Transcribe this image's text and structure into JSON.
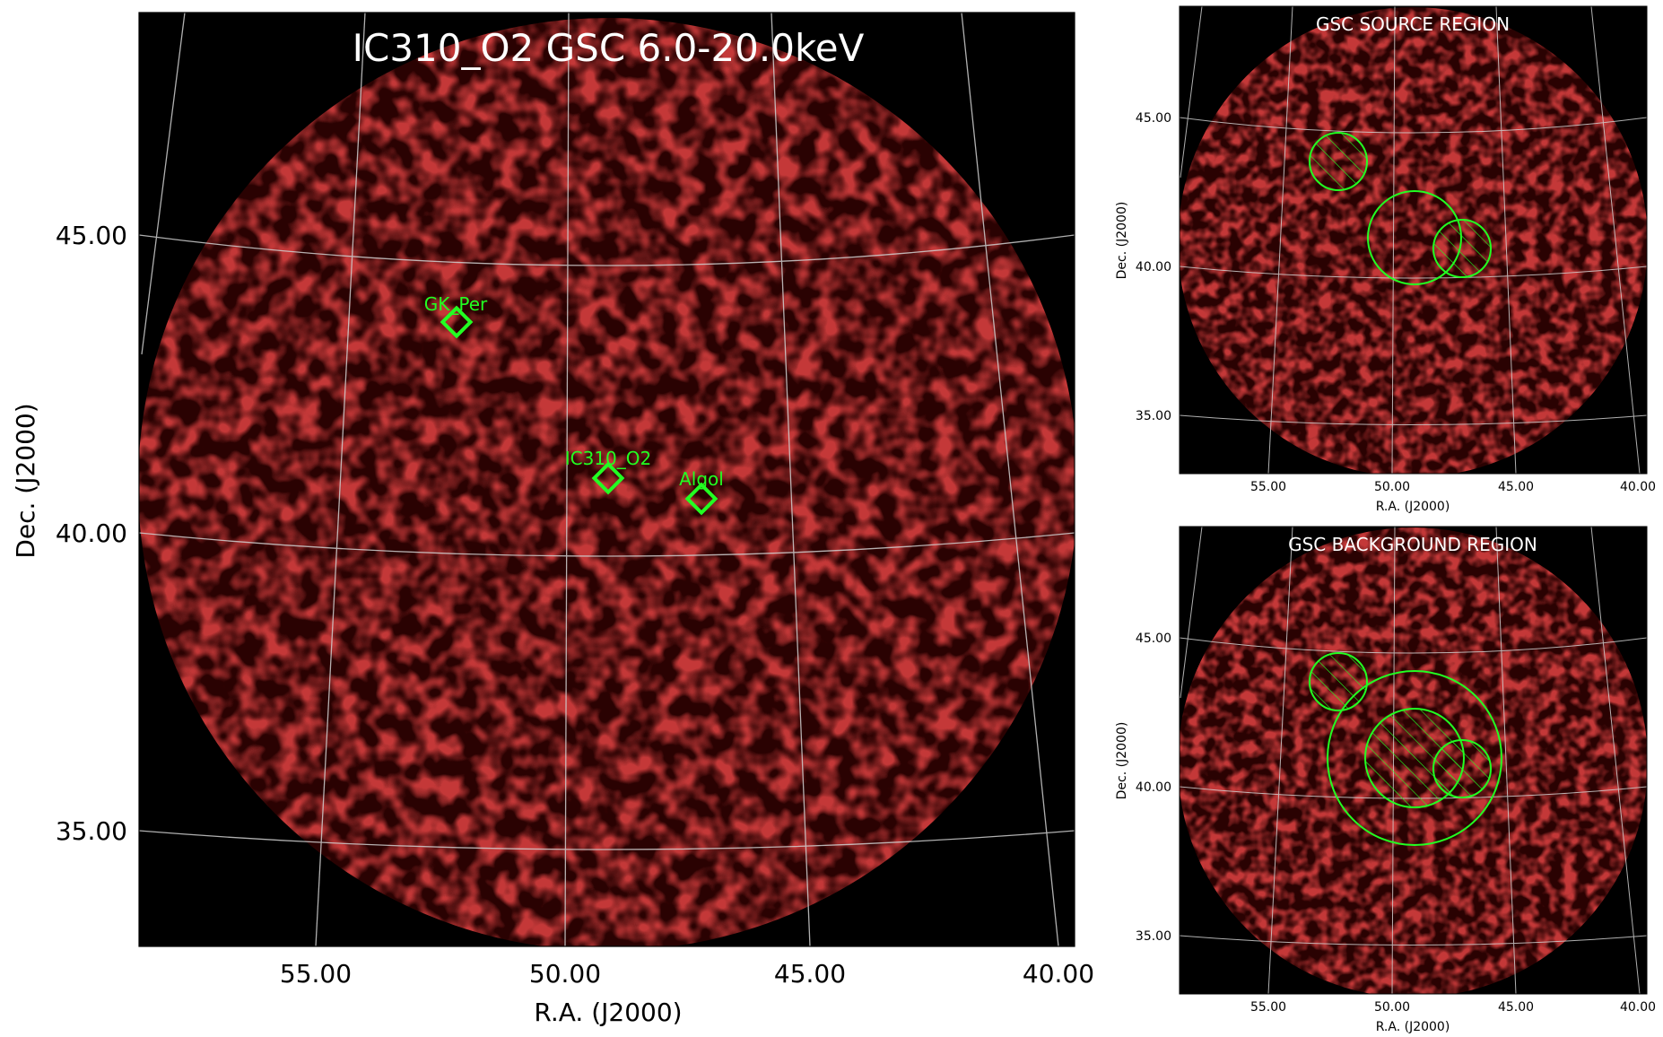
{
  "main": {
    "title": "IC310_O2 GSC 6.0-20.0keV",
    "xlabel": "R.A. (J2000)",
    "ylabel": "Dec. (J2000)",
    "ra_ticks": [
      "55.00",
      "50.00",
      "45.00",
      "40.00"
    ],
    "dec_ticks": [
      "45.00",
      "40.00",
      "35.00"
    ],
    "sources": [
      {
        "label": "GK_Per",
        "ra": 52.25,
        "dec": 43.6
      },
      {
        "label": "IC310_O2",
        "ra": 49.2,
        "dec": 41.0
      },
      {
        "label": "Algol",
        "ra": 47.1,
        "dec": 40.6
      }
    ]
  },
  "panel_source": {
    "title": "GSC SOURCE REGION",
    "xlabel": "R.A. (J2000)",
    "ylabel": "Dec. (J2000)",
    "ra_ticks": [
      "55.00",
      "50.00",
      "45.00",
      "40.00"
    ],
    "dec_ticks": [
      "45.00",
      "40.00",
      "35.00"
    ]
  },
  "panel_background": {
    "title": "GSC BACKGROUND REGION",
    "xlabel": "R.A. (J2000)",
    "ylabel": "Dec. (J2000)",
    "ra_ticks": [
      "55.00",
      "50.00",
      "45.00",
      "40.00"
    ],
    "dec_ticks": [
      "45.00",
      "40.00",
      "35.00"
    ]
  },
  "colors": {
    "background": "#000000",
    "emission": "#8c0a0a",
    "marker": "#22ff22",
    "grid": "#cfcfcf",
    "title": "#ffffff"
  }
}
